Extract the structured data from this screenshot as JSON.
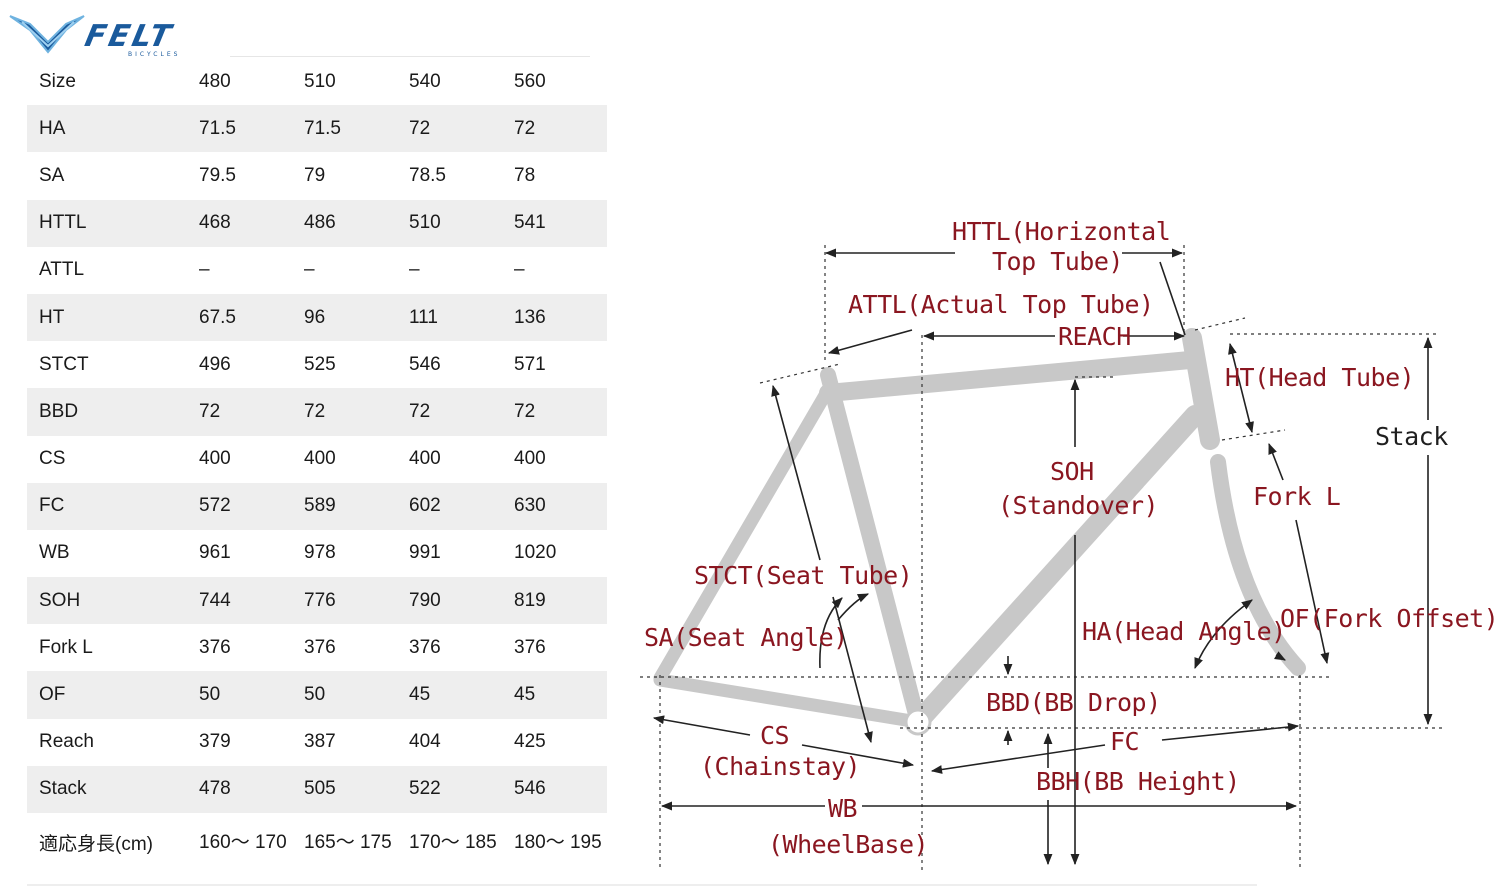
{
  "brand": {
    "name": "FELT",
    "tagline": "BICYCLES",
    "colors": {
      "logo_blue": "#1a5a9c",
      "logo_light": "#6fb3e0",
      "row_shade": "#eeeeee"
    }
  },
  "geometry_table": {
    "rows": [
      {
        "label": "Size",
        "values": [
          "480",
          "510",
          "540",
          "560"
        ]
      },
      {
        "label": "HA",
        "values": [
          "71.5",
          "71.5",
          "72",
          "72"
        ]
      },
      {
        "label": "SA",
        "values": [
          "79.5",
          "79",
          "78.5",
          "78"
        ]
      },
      {
        "label": "HTTL",
        "values": [
          "468",
          "486",
          "510",
          "541"
        ]
      },
      {
        "label": "ATTL",
        "values": [
          "–",
          "–",
          "–",
          "–"
        ]
      },
      {
        "label": "HT",
        "values": [
          "67.5",
          "96",
          "111",
          "136"
        ]
      },
      {
        "label": "STCT",
        "values": [
          "496",
          "525",
          "546",
          "571"
        ]
      },
      {
        "label": "BBD",
        "values": [
          "72",
          "72",
          "72",
          "72"
        ]
      },
      {
        "label": "CS",
        "values": [
          "400",
          "400",
          "400",
          "400"
        ]
      },
      {
        "label": "FC",
        "values": [
          "572",
          "589",
          "602",
          "630"
        ]
      },
      {
        "label": "WB",
        "values": [
          "961",
          "978",
          "991",
          "1020"
        ]
      },
      {
        "label": "SOH",
        "values": [
          "744",
          "776",
          "790",
          "819"
        ]
      },
      {
        "label": "Fork L",
        "values": [
          "376",
          "376",
          "376",
          "376"
        ]
      },
      {
        "label": "OF",
        "values": [
          "50",
          "50",
          "45",
          "45"
        ]
      },
      {
        "label": "Reach",
        "values": [
          "379",
          "387",
          "404",
          "425"
        ]
      },
      {
        "label": "Stack",
        "values": [
          "478",
          "505",
          "522",
          "546"
        ]
      },
      {
        "label": "適応身長(cm)",
        "values": [
          "160～ 170",
          "165～ 175",
          "170～ 185",
          "180～ 195"
        ]
      }
    ]
  },
  "diagram": {
    "labels": {
      "httl_1": "HTTL(Horizontal",
      "httl_2": "Top Tube)",
      "attl": "ATTL(Actual Top Tube)",
      "reach": "REACH",
      "ht": "HT(Head Tube)",
      "stack": "Stack",
      "soh_1": "SOH",
      "soh_2": "(Standover)",
      "fork_l": "Fork L",
      "stct": "STCT(Seat Tube)",
      "sa": "SA(Seat Angle)",
      "ha": "HA(Head Angle)",
      "of": "OF(Fork Offset)",
      "bbd": "BBD(BB Drop)",
      "cs_1": "CS",
      "cs_2": "(Chainstay)",
      "fc": "FC",
      "bbh": "BBH(BB Height)",
      "wb_1": "WB",
      "wb_2": "(WheelBase)"
    }
  }
}
